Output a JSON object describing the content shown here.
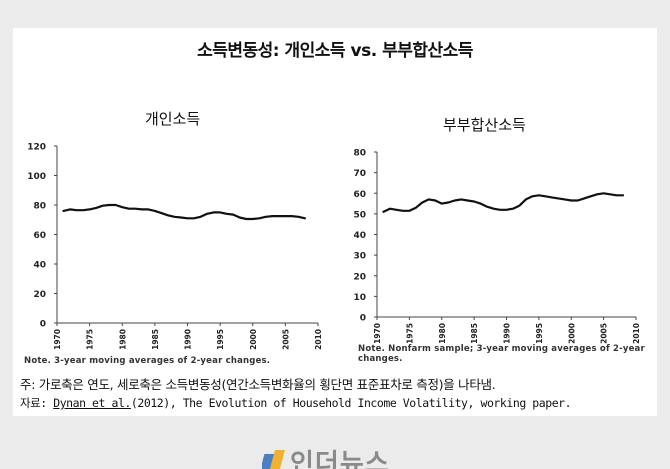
{
  "main_title": "소득변동성: 개인소득 vs. 부부합산소득",
  "chart_data": [
    {
      "type": "line",
      "title": "개인소득",
      "xlabel": "",
      "ylabel": "",
      "xlim": [
        1970,
        2010
      ],
      "ylim": [
        0,
        120
      ],
      "x_ticks": [
        1970,
        1975,
        1980,
        1985,
        1990,
        1995,
        2000,
        2005,
        2010
      ],
      "y_ticks": [
        0,
        20,
        40,
        60,
        80,
        100,
        120
      ],
      "series": [
        {
          "color": "#111111",
          "x": [
            1971,
            1972,
            1973,
            1974,
            1975,
            1976,
            1977,
            1978,
            1979,
            1980,
            1981,
            1982,
            1983,
            1984,
            1985,
            1986,
            1987,
            1988,
            1989,
            1990,
            1991,
            1992,
            1993,
            1994,
            1995,
            1996,
            1997,
            1998,
            1999,
            2000,
            2001,
            2002,
            2003,
            2004,
            2005,
            2006,
            2007,
            2008
          ],
          "y": [
            76,
            77,
            76.5,
            76.5,
            77,
            78,
            79.5,
            80,
            80,
            78.5,
            77.5,
            77.5,
            77,
            77,
            76,
            74.5,
            73,
            72,
            71.5,
            71,
            71,
            72,
            74,
            75,
            75,
            74,
            73.5,
            71.5,
            70.5,
            70.5,
            71,
            72,
            72.5,
            72.5,
            72.5,
            72.5,
            72,
            71
          ]
        }
      ],
      "note": "Note. 3-year moving averages of 2-year changes."
    },
    {
      "type": "line",
      "title": "부부합산소득",
      "xlabel": "",
      "ylabel": "",
      "xlim": [
        1970,
        2010
      ],
      "ylim": [
        0,
        80
      ],
      "x_ticks": [
        1970,
        1975,
        1980,
        1985,
        1990,
        1995,
        2000,
        2005,
        2010
      ],
      "y_ticks": [
        0,
        10,
        20,
        30,
        40,
        50,
        60,
        70,
        80
      ],
      "series": [
        {
          "color": "#111111",
          "x": [
            1971,
            1972,
            1973,
            1974,
            1975,
            1976,
            1977,
            1978,
            1979,
            1980,
            1981,
            1982,
            1983,
            1984,
            1985,
            1986,
            1987,
            1988,
            1989,
            1990,
            1991,
            1992,
            1993,
            1994,
            1995,
            1996,
            1997,
            1998,
            1999,
            2000,
            2001,
            2002,
            2003,
            2004,
            2005,
            2006,
            2007,
            2008
          ],
          "y": [
            51,
            52.5,
            52,
            51.5,
            51.5,
            53,
            55.5,
            57,
            56.5,
            55,
            55.5,
            56.5,
            57,
            56.5,
            56,
            55,
            53.5,
            52.5,
            52,
            52,
            52.5,
            54,
            57,
            58.5,
            59,
            58.5,
            58,
            57.5,
            57,
            56.5,
            56.5,
            57.5,
            58.5,
            59.5,
            60,
            59.5,
            59,
            59
          ]
        }
      ],
      "note": "Note. Nonfarm sample; 3-year moving averages of 2-year changes."
    }
  ],
  "caption": "주: 가로축은 연도, 세로축은 소득변동성(연간소득변화율의 횡단면 표준표차로 측정)을 나타냄.",
  "source": {
    "prefix": "자료: ",
    "author": "Dynan et al.",
    "rest": "(2012), The Evolution of Household Income Volatility, working paper."
  },
  "watermark": "인더뉴스"
}
